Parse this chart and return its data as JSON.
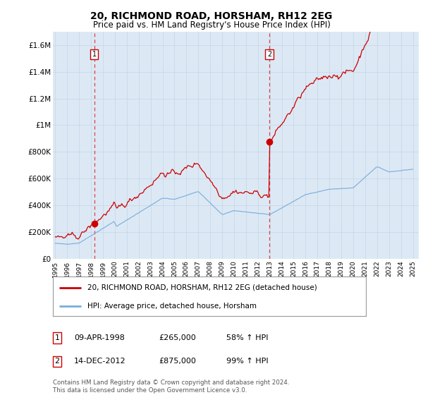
{
  "title": "20, RICHMOND ROAD, HORSHAM, RH12 2EG",
  "subtitle": "Price paid vs. HM Land Registry's House Price Index (HPI)",
  "title_fontsize": 10,
  "subtitle_fontsize": 8.5,
  "background_color": "#ffffff",
  "plot_bg_color": "#dce9f5",
  "grid_color": "#c8d8e8",
  "ylim": [
    0,
    1700000
  ],
  "yticks": [
    0,
    200000,
    400000,
    600000,
    800000,
    1000000,
    1200000,
    1400000,
    1600000
  ],
  "ytick_labels": [
    "£0",
    "£200K",
    "£400K",
    "£600K",
    "£800K",
    "£1M",
    "£1.2M",
    "£1.4M",
    "£1.6M"
  ],
  "xlim_start": 1994.8,
  "xlim_end": 2025.5,
  "xtick_years": [
    1995,
    1996,
    1997,
    1998,
    1999,
    2000,
    2001,
    2002,
    2003,
    2004,
    2005,
    2006,
    2007,
    2008,
    2009,
    2010,
    2011,
    2012,
    2013,
    2014,
    2015,
    2016,
    2017,
    2018,
    2019,
    2020,
    2021,
    2022,
    2023,
    2024,
    2025
  ],
  "sale1_x": 1998.27,
  "sale1_y": 265000,
  "sale1_label": "1",
  "sale1_date": "09-APR-1998",
  "sale1_price": "£265,000",
  "sale1_hpi": "58% ↑ HPI",
  "sale2_x": 2012.96,
  "sale2_y": 875000,
  "sale2_label": "2",
  "sale2_date": "14-DEC-2012",
  "sale2_price": "£875,000",
  "sale2_hpi": "99% ↑ HPI",
  "red_line_color": "#cc0000",
  "blue_line_color": "#7aacdc",
  "vline_color": "#dd4444",
  "marker_color": "#cc0000",
  "legend_line1": "20, RICHMOND ROAD, HORSHAM, RH12 2EG (detached house)",
  "legend_line2": "HPI: Average price, detached house, Horsham",
  "footer": "Contains HM Land Registry data © Crown copyright and database right 2024.\nThis data is licensed under the Open Government Licence v3.0."
}
